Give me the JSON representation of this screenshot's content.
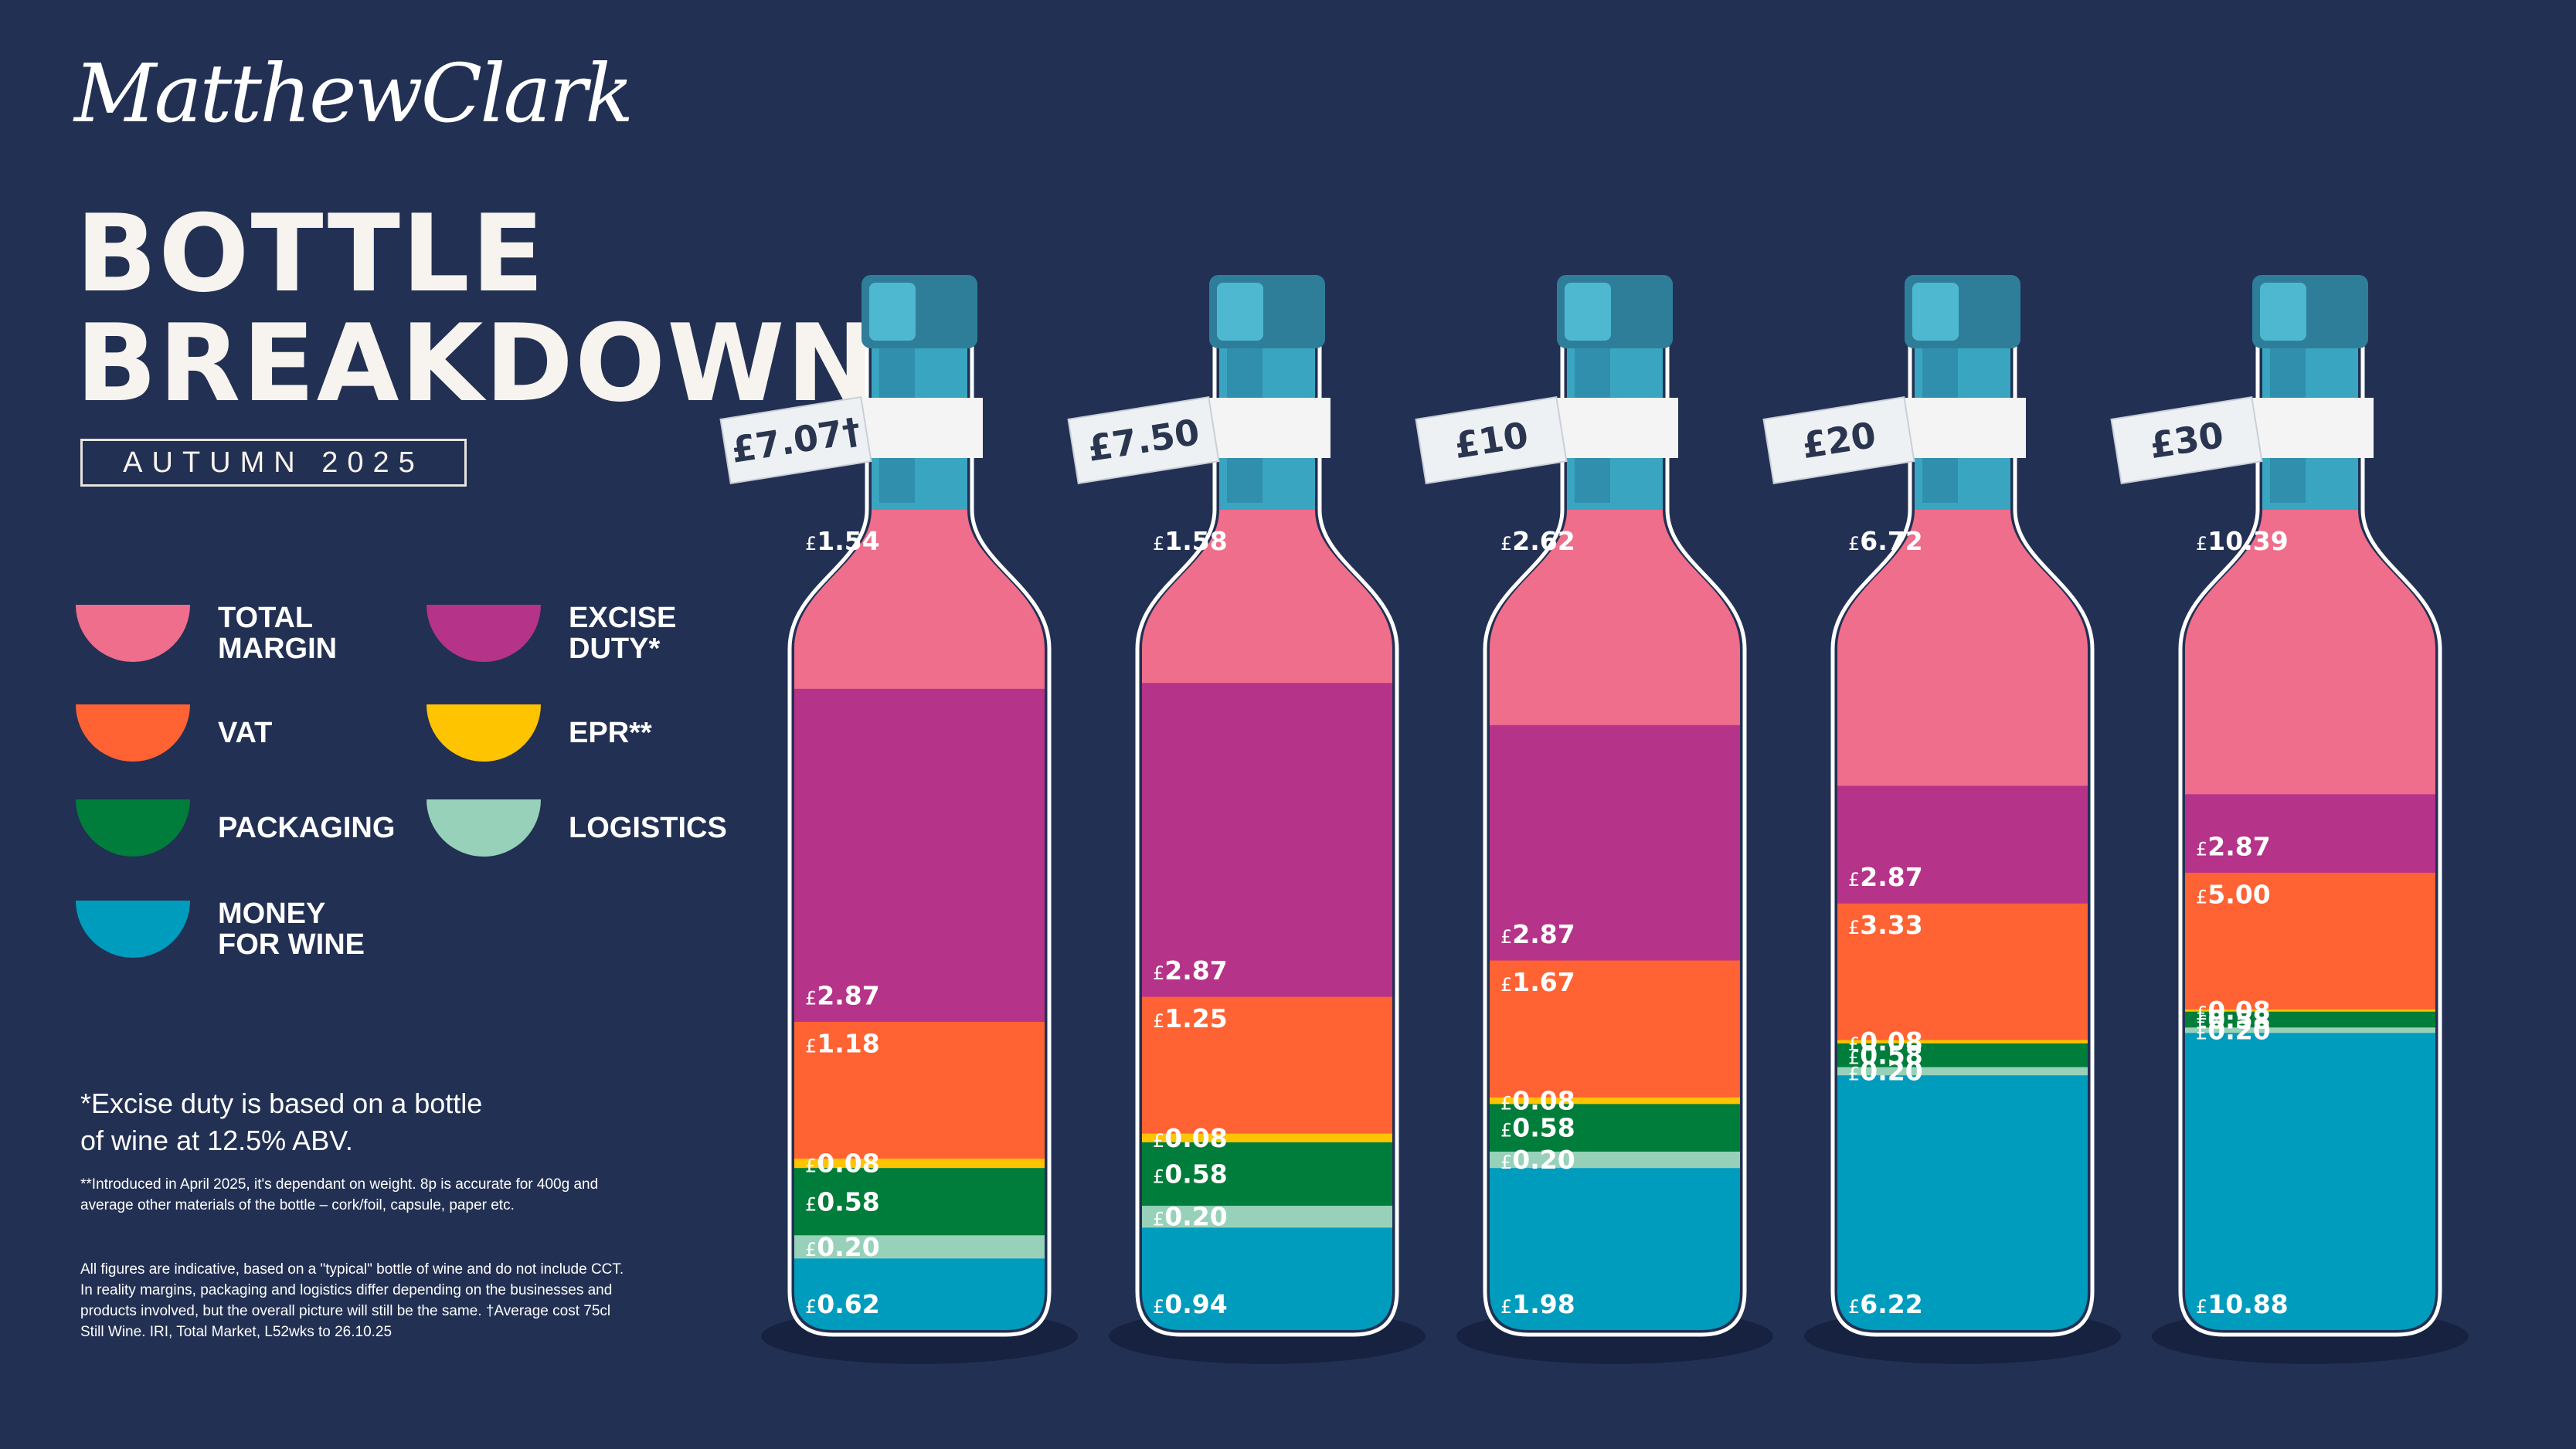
{
  "brand": {
    "logo_text": "MatthewClark"
  },
  "header": {
    "title_line1": "BOTTLE",
    "title_line2": "BREAKDOWN",
    "season": "AUTUMN 2025"
  },
  "legend": [
    {
      "key": "margin",
      "label": "TOTAL\nMARGIN",
      "color": "#ee6e8c"
    },
    {
      "key": "excise",
      "label": "EXCISE\nDUTY*",
      "color": "#b53389"
    },
    {
      "key": "vat",
      "label": "VAT",
      "color": "#ff6233"
    },
    {
      "key": "epr",
      "label": "EPR**",
      "color": "#ffc400"
    },
    {
      "key": "packaging",
      "label": "PACKAGING",
      "color": "#007d3a"
    },
    {
      "key": "logistics",
      "label": "LOGISTICS",
      "color": "#97d1b9"
    },
    {
      "key": "wine",
      "label": "MONEY\nFOR WINE",
      "color": "#009cbd"
    }
  ],
  "notes": {
    "excise": "*Excise duty is based on a bottle of wine at 12.5% ABV.",
    "epr": "**Introduced in April 2025, it's dependant on weight. 8p is accurate for 400g and average other materials of the bottle – cork/foil, capsule, paper etc.",
    "general": "All figures are indicative, based on a \"typical\" bottle of wine and do not include CCT. In reality margins, packaging and logistics differ depending on the businesses and products involved, but the overall picture will still be the same. †Average cost 75cl Still Wine. IRI, Total Market, L52wks to 26.10.25"
  },
  "chart_data": {
    "type": "bar",
    "stacked": true,
    "currency_symbol": "£",
    "categories": [
      "£7.07†",
      "£7.50",
      "£10",
      "£20",
      "£30"
    ],
    "series": [
      {
        "name": "MONEY FOR WINE",
        "key": "wine",
        "values": [
          0.62,
          0.94,
          1.98,
          6.22,
          10.88
        ]
      },
      {
        "name": "LOGISTICS",
        "key": "logistics",
        "values": [
          0.2,
          0.2,
          0.2,
          0.2,
          0.2
        ]
      },
      {
        "name": "PACKAGING",
        "key": "packaging",
        "values": [
          0.58,
          0.58,
          0.58,
          0.58,
          0.58
        ]
      },
      {
        "name": "EPR**",
        "key": "epr",
        "values": [
          0.08,
          0.08,
          0.08,
          0.08,
          0.08
        ]
      },
      {
        "name": "VAT",
        "key": "vat",
        "values": [
          1.18,
          1.25,
          1.67,
          3.33,
          5.0
        ]
      },
      {
        "name": "EXCISE DUTY*",
        "key": "excise",
        "values": [
          2.87,
          2.87,
          2.87,
          2.87,
          2.87
        ]
      },
      {
        "name": "TOTAL MARGIN",
        "key": "margin",
        "values": [
          1.54,
          1.58,
          2.62,
          6.72,
          10.39
        ]
      }
    ],
    "value_labels": [
      [
        "0.62",
        "0.20",
        "0.58",
        "0.08",
        "1.18",
        "2.87",
        "1.54"
      ],
      [
        "0.94",
        "0.20",
        "0.58",
        "0.08",
        "1.25",
        "2.87",
        "1.58"
      ],
      [
        "1.98",
        "0.20",
        "0.58",
        "0.08",
        "1.67",
        "2.87",
        "2.62"
      ],
      [
        "6.22",
        "0.20",
        "0.58",
        "0.08",
        "3.33",
        "2.87",
        "6.72"
      ],
      [
        "10.88",
        "0.20",
        "0.58",
        "0.08",
        "5.00",
        "2.87",
        "10.39"
      ]
    ]
  }
}
